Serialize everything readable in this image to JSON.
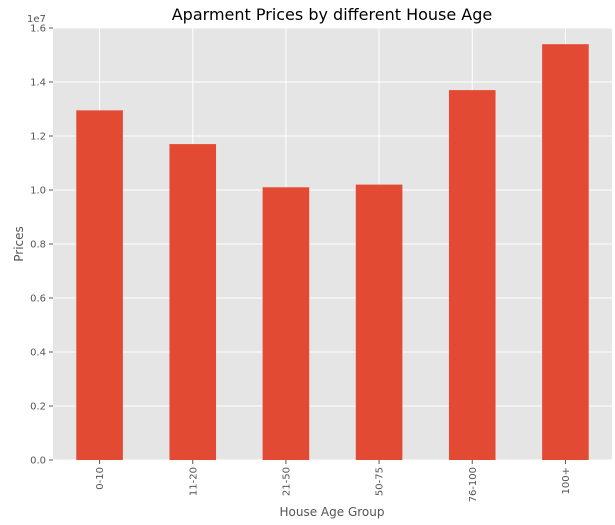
{
  "chart_data": {
    "type": "bar",
    "title": "Aparment Prices by different House Age",
    "xlabel": "House Age Group",
    "ylabel": "Prices",
    "y_offset_text": "1e7",
    "y_scale": 10000000,
    "categories": [
      "0-10",
      "11-20",
      "21-50",
      "50-75",
      "76-100",
      "100+"
    ],
    "values": [
      12950000,
      11700000,
      10100000,
      10200000,
      13700000,
      15400000
    ],
    "ylim": [
      0,
      16000000
    ],
    "yticks": [
      "0.0",
      "0.2",
      "0.4",
      "0.6",
      "0.8",
      "1.0",
      "1.2",
      "1.4",
      "1.6"
    ],
    "grid": true,
    "colors": {
      "bar": "#e24a33",
      "plot_bg": "#e5e5e5",
      "grid": "#ffffff"
    }
  }
}
